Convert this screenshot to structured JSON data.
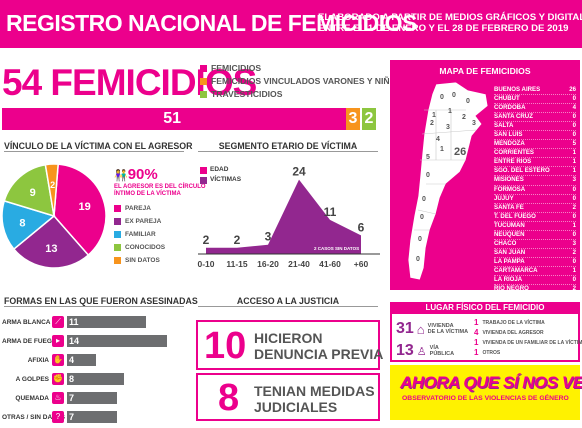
{
  "header": {
    "title": "REGISTRO NACIONAL DE FEMICIDIOS",
    "subtitle_line1": "ELABORADO A PARTIR DE MEDIOS GRÁFICOS Y DIGITALES",
    "subtitle_line2": "ENTRE EL 1 DE ENERO Y EL 28 DE FEBRERO DE 2019"
  },
  "summary": {
    "headline": "54 FEMICIDIOS",
    "legend": [
      {
        "label": "FEMICIDIOS",
        "color": "#ec008c"
      },
      {
        "label": "FEMICIDIOS VINCULADOS VARONES Y NIÑOS",
        "color": "#f7941d"
      },
      {
        "label": "TRAVESTICIDIOS",
        "color": "#8dc63f"
      }
    ],
    "bar_values": [
      "51",
      "3",
      "2"
    ]
  },
  "vinculo": {
    "title": "VÍNCULO DE LA VÍCTIMA CON EL AGRESOR",
    "percent": "90%",
    "percent_note_1": "EL AGRESOR ES DEL CÍRCULO",
    "percent_note_2": "ÍNTIMO DE LA VÍCTIMA",
    "legend": [
      {
        "label": "PAREJA",
        "color": "#ec008c"
      },
      {
        "label": "EX PAREJA",
        "color": "#92278f"
      },
      {
        "label": "FAMILIAR",
        "color": "#29abe2"
      },
      {
        "label": "CONOCIDOS",
        "color": "#8dc63f"
      },
      {
        "label": "SIN DATOS",
        "color": "#f7941d"
      }
    ]
  },
  "chart_data": [
    {
      "type": "pie",
      "categories": [
        "PAREJA",
        "EX PAREJA",
        "FAMILIAR",
        "CONOCIDOS",
        "SIN DATOS"
      ],
      "values": [
        19,
        13,
        8,
        9,
        2
      ],
      "colors": [
        "#ec008c",
        "#92278f",
        "#29abe2",
        "#8dc63f",
        "#f7941d"
      ]
    },
    {
      "type": "area",
      "title": "SEGMENTO ETARIO DE VÍCTIMA",
      "categories": [
        "0-10",
        "11-15",
        "16-20",
        "21-40",
        "41-60",
        "+60"
      ],
      "series": [
        {
          "name": "EDAD",
          "values": [
            2,
            2,
            3,
            24,
            11,
            6
          ]
        }
      ],
      "legend": [
        "EDAD",
        "VÍCTIMAS"
      ],
      "note": "2 CASOS SIN DATOS"
    },
    {
      "type": "bar",
      "title": "FORMAS EN LAS QUE FUERON ASESINADAS",
      "categories": [
        "ARMA BLANCA",
        "ARMA DE FUEGO",
        "AFIXIA",
        "A GOLPES",
        "QUEMADA",
        "OTRAS / SIN DATOS"
      ],
      "values": [
        11,
        14,
        4,
        8,
        7,
        7
      ]
    }
  ],
  "formas": {
    "title": "FORMAS EN LAS QUE FUERON ASESINADAS",
    "rows": [
      {
        "label": "ARMA BLANCA",
        "value": "11",
        "icon": "knife-icon"
      },
      {
        "label": "ARMA DE FUEGO",
        "value": "14",
        "icon": "gun-icon"
      },
      {
        "label": "AFIXIA",
        "value": "4",
        "icon": "hand-icon"
      },
      {
        "label": "A GOLPES",
        "value": "8",
        "icon": "fist-icon"
      },
      {
        "label": "QUEMADA",
        "value": "7",
        "icon": "fire-icon"
      },
      {
        "label": "OTRAS / SIN DATOS",
        "value": "7",
        "icon": "question-icon"
      }
    ]
  },
  "justicia": {
    "title": "ACCESO A LA JUSTICIA",
    "denuncia_value": "10",
    "denuncia_line1": "HICIERON",
    "denuncia_line2": "DENUNCIA PREVIA",
    "medidas_value": "8",
    "medidas_line1": "TENIAN MEDIDAS",
    "medidas_line2": "JUDICIALES"
  },
  "mapa": {
    "title": "MAPA DE FEMICIDIOS",
    "provinces": [
      {
        "name": "BUENOS AIRES",
        "value": "26"
      },
      {
        "name": "CHUBUT",
        "value": "0"
      },
      {
        "name": "CORDOBA",
        "value": "4"
      },
      {
        "name": "SANTA CRUZ",
        "value": "0"
      },
      {
        "name": "SALTA",
        "value": "0"
      },
      {
        "name": "SAN LUIS",
        "value": "0"
      },
      {
        "name": "MENDOZA",
        "value": "5"
      },
      {
        "name": "CORRIENTES",
        "value": "1"
      },
      {
        "name": "ENTRE RIOS",
        "value": "1"
      },
      {
        "name": "SGO. DEL ESTERO",
        "value": "1"
      },
      {
        "name": "MISIONES",
        "value": "3"
      },
      {
        "name": "FORMOSA",
        "value": "0"
      },
      {
        "name": "JUJUY",
        "value": "0"
      },
      {
        "name": "SANTA FE",
        "value": "2"
      },
      {
        "name": "T. DEL FUEGO",
        "value": "0"
      },
      {
        "name": "TUCUMAN",
        "value": "1"
      },
      {
        "name": "NEUQUEN",
        "value": "0"
      },
      {
        "name": "CHACO",
        "value": "3"
      },
      {
        "name": "SAN JUAN",
        "value": "2"
      },
      {
        "name": "LA PAMPA",
        "value": "0"
      },
      {
        "name": "CARTAMARCA",
        "value": "1"
      },
      {
        "name": "LA RIOJA",
        "value": "0"
      },
      {
        "name": "RIO NEGRO",
        "value": "2"
      },
      {
        "name": "CABA",
        "value": "2"
      }
    ],
    "map_numbers": [
      "0",
      "0",
      "0",
      "1",
      "1",
      "2",
      "3",
      "4",
      "5",
      "1",
      "3",
      "26",
      "0",
      "0",
      "0",
      "0",
      "0",
      "2"
    ]
  },
  "lugar": {
    "title": "LUGAR FÍSICO DEL FEMICIDIO",
    "vivienda_value": "31",
    "vivienda_line1": "VIVIENDA",
    "vivienda_line2": "DE LA VÍCTIMA",
    "via_value": "13",
    "via_line1": "VÍA",
    "via_line2": "PÚBLICA",
    "others": [
      {
        "value": "1",
        "label": "TRABAJO DE LA VÍCTIMA"
      },
      {
        "value": "4",
        "label": "VIVIENDA DEL AGRESOR"
      },
      {
        "value": "1",
        "label": "VIVIENDA DE UN FAMILIAR DE LA VÍCTIMA"
      },
      {
        "value": "1",
        "label": "OTROS"
      }
    ]
  },
  "campaign": {
    "logo_text": "AHORA QUE SÍ NOS VEN",
    "tagline": "OBSERVATORIO DE LAS VIOLENCIAS DE GÉNERO"
  }
}
